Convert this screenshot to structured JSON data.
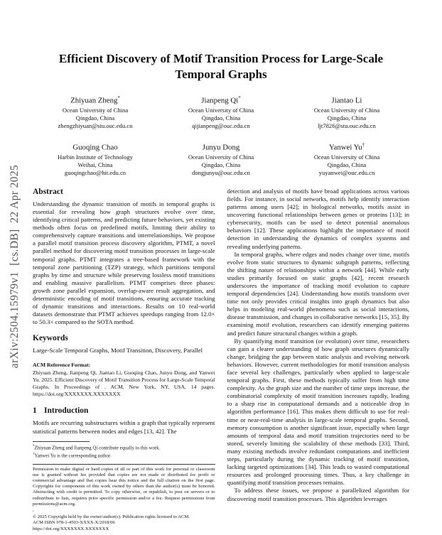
{
  "watermark": {
    "text": "arXiv:2504.15979v1  [cs.DB]  22 Apr 2025"
  },
  "title": "Efficient Discovery of Motif Transition Process for Large-Scale Temporal Graphs",
  "authors": [
    {
      "name": "Zhiyuan Zheng",
      "marker": "*",
      "affiliation": "Ocean University of China",
      "location": "Qingdao, China",
      "email": "zhengzhiyuan@stu.ouc.edu.cn"
    },
    {
      "name": "Jianpeng Qi",
      "marker": "*",
      "affiliation": "Ocean University of China",
      "location": "Qingdao, China",
      "email": "qijianpeng@ouc.edu.cn"
    },
    {
      "name": "Jiantao Li",
      "marker": "",
      "affiliation": "Ocean University of China",
      "location": "Qingdao, China",
      "email": "ljt7826@stu.ouc.edu.cn"
    },
    {
      "name": "Guoqing Chao",
      "marker": "",
      "affiliation": "Harbin Institute of Technology",
      "location": "Weihai, China",
      "email": "guoqingchao@hit.edu.cn"
    },
    {
      "name": "Junyu Dong",
      "marker": "",
      "affiliation": "Ocean University of China",
      "location": "Qingdao, China",
      "email": "dongjunyu@ouc.edu.cn"
    },
    {
      "name": "Yanwei Yu",
      "marker": "†",
      "affiliation": "Ocean University of China",
      "location": "Qingdao, China",
      "email": "yuyanwei@ouc.edu.cn"
    }
  ],
  "left_column": {
    "abstract": {
      "heading": "Abstract",
      "text": "Understanding the dynamic transition of motifs in temporal graphs is essential for revealing how graph structures evolve over time, identifying critical patterns, and predicting future behaviors, yet existing methods often focus on predefined motifs, limiting their ability to comprehensively capture transitions and interrelationships. We propose a parallel motif transition process discovery algorithm, PTMT, a novel parallel method for discovering motif transition processes in large-scale temporal graphs. PTMT integrates a tree-based framework with the temporal zone partitioning (TZP) strategy, which partitions temporal graphs by time and structure while preserving lossless motif transitions and enabling massive parallelism. PTMT comprises three phases: growth zone parallel expansion, overlap-aware result aggregation, and deterministic encoding of motif transitions, ensuring accurate tracking of dynamic transitions and interactions. Results on 10 real-world datasets demonstrate that PTMT achieves speedups ranging from 12.0× to 50.3× compared to the SOTA method."
    },
    "keywords": {
      "heading": "Keywords",
      "text": "Large-Scale Temporal Graphs, Motif Transition, Discovery, Parallel"
    },
    "acm_reference": {
      "heading": "ACM Reference Format:",
      "text": "Zhiyuan Zheng, Jianpeng Qi, Jiantao Li, Guoqing Chao, Junyu Dong, and Yanwei Yu. 2025. Efficient Discovery of Motif Transition Process for Large-Scale Temporal Graphs. In Proceedings of . ACM, New York, NY, USA, 14 pages. https://doi.org/XXXXXXX.XXXXXXX"
    },
    "introduction": {
      "number": "1",
      "heading": "Introduction",
      "text": "Motifs are recurring substructures within a graph that typically represent statistical patterns between nodes and edges [13, 42]. The"
    },
    "footnotes": [
      {
        "marker": "*",
        "text": "Zhiyuan Zheng and Jianpeng Qi contribute equally to this work."
      },
      {
        "marker": "†",
        "text": "Yanwei Yu is the corresponding author."
      }
    ],
    "permission": {
      "text": "Permission to make digital or hard copies of all or part of this work for personal or classroom use is granted without fee provided that copies are not made or distributed for profit or commercial advantage and that copies bear this notice and the full citation on the first page. Copyrights for components of this work owned by others than the author(s) must be honored. Abstracting with credit is permitted. To copy otherwise, or republish, to post on servers or to redistribute to lists, requires prior specific permission and/or a fee. Request permissions from permissions@acm.org.",
      "conference_line": ",",
      "copyright": "© 2025 Copyright held by the owner/author(s). Publication rights licensed to ACM.",
      "isbn": "ACM ISBN 978-1-4503-XXXX-X/2018/06",
      "doi": "https://doi.org/XXXXXXX.XXXXXXX"
    }
  },
  "right_column": {
    "paragraphs": [
      "detection and analysis of motifs have broad applications across various fields. For instance, in social networks, motifs help identify interaction patterns among users [42]; in biological networks, motifs assist in uncovering functional relationships between genes or proteins [13]; in cybersecurity, motifs can be used to detect potential anomalous behaviors [12]. These applications highlight the importance of motif detection in understanding the dynamics of complex systems and revealing underlying patterns.",
      "In temporal graphs, where edges and nodes change over time, motifs evolve from static structures to dynamic subgraph patterns, reflecting the shifting nature of relationships within a network [44]. While early studies primarily focused on static graphs [42], recent research underscores the importance of tracking motif evolution to capture temporal dependencies [24]. Understanding how motifs transform over time not only provides critical insights into graph dynamics but also helps in modeling real-world phenomena such as social interactions, disease transmission, and changes in collaborative networks [15, 35]. By examining motif evolution, researchers can identify emerging patterns and predict future structural changes within a graph.",
      "By quantifying motif transition (or evolution) over time, researchers can gain a clearer understanding of how graph structures dynamically change, bridging the gap between static analysis and evolving network behaviors. However, current methodologies for motif transition analysis face several key challenges, particularly when applied to large-scale temporal graphs. First, these methods typically suffer from high time complexity. As the graph size and the number of time steps increase, the combinatorial complexity of motif transition increases rapidly, leading to a sharp rise in computational demands and a noticeable drop in algorithm performance [16]. This makes them difficult to use for real-time or near-real-time analysis in large-scale temporal graphs. Second, memory consumption is another significant issue, especially when large amounts of temporal data and motif transition trajectories need to be stored, severely limiting the scalability of these methods [33]. Third, many existing methods involve redundant computations and inefficient steps, particularly during the dynamic tracking of motif transition, lacking targeted optimizations [34]. This leads to wasted computational resources and prolonged processing times. Thus, a key challenge in quantifying motif transition processes remains.",
      "To address these issues, we propose a parallelized algorithm for discovering motif transition processes. This algorithm leverages"
    ]
  }
}
